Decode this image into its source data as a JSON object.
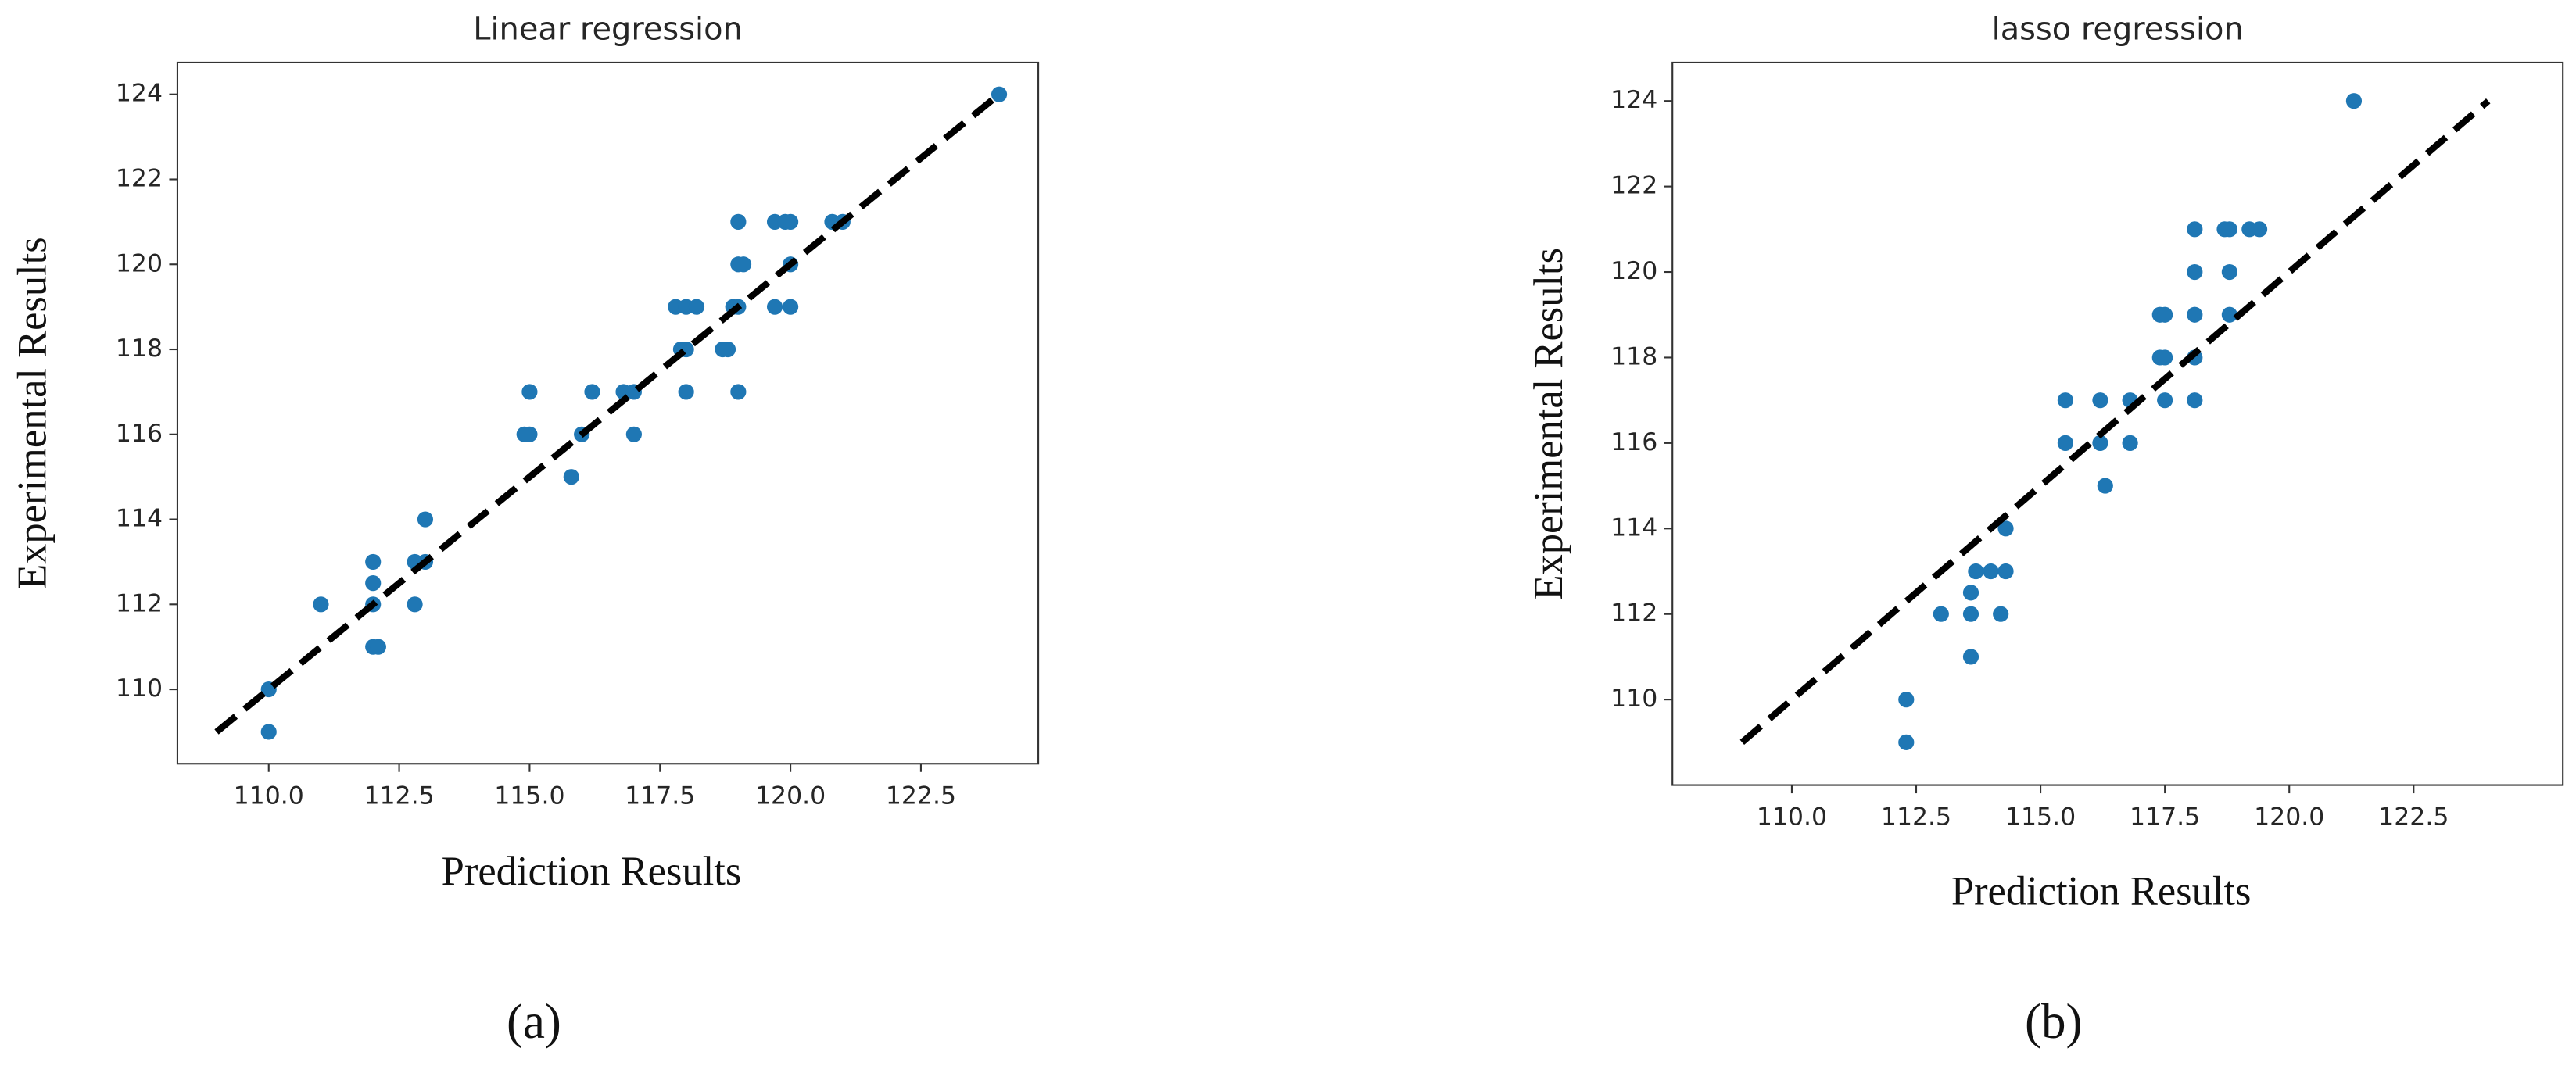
{
  "chart_data": [
    {
      "type": "scatter",
      "title": "Linear regression",
      "xlabel": "Prediction Results",
      "ylabel": "Experimental Results",
      "caption": "(a)",
      "color": "#1f77b4",
      "x": [
        124,
        110,
        110,
        111,
        112,
        112,
        112,
        112,
        112.1,
        112.8,
        113,
        113,
        112.8,
        115,
        115,
        114.9,
        115.8,
        116,
        116.2,
        116.8,
        117,
        117,
        117.8,
        118,
        118.2,
        117.9,
        118,
        118,
        118.8,
        118.7,
        118.9,
        119,
        119,
        119,
        119.1,
        119,
        119.7,
        119.9,
        120,
        119.7,
        120,
        120,
        120.8,
        121
      ],
      "y": [
        124,
        110,
        109,
        112,
        113,
        112.5,
        112,
        111,
        111,
        113,
        113,
        114,
        112,
        117,
        116,
        116,
        115,
        116,
        117,
        117,
        117,
        116,
        119,
        119,
        119,
        118,
        118,
        117,
        118,
        118,
        119,
        119,
        120,
        121,
        120,
        117,
        121,
        121,
        121,
        119,
        119,
        120,
        121,
        121
      ],
      "diagonal": {
        "x": [
          109,
          124
        ],
        "y": [
          109,
          124
        ],
        "color": "#000000"
      },
      "xlim": [
        108.25,
        124.75
      ],
      "ylim": [
        108.25,
        124.75
      ],
      "xticks": [
        {
          "value": 110,
          "label": "110.0"
        },
        {
          "value": 112.5,
          "label": "112.5"
        },
        {
          "value": 115,
          "label": "115.0"
        },
        {
          "value": 117.5,
          "label": "117.5"
        },
        {
          "value": 120,
          "label": "120.0"
        },
        {
          "value": 122.5,
          "label": "122.5"
        }
      ],
      "yticks": [
        110,
        112,
        114,
        116,
        118,
        120,
        122,
        124
      ]
    },
    {
      "type": "scatter",
      "title": "lasso regression",
      "xlabel": "Prediction Results",
      "ylabel": "Experimental Results",
      "caption": "(b)",
      "color": "#1f77b4",
      "x": [
        121.3,
        112.3,
        112.3,
        113,
        113.6,
        113.6,
        113.7,
        113.6,
        114,
        114.2,
        114.3,
        114.3,
        115.5,
        115.5,
        116.2,
        116.2,
        116.3,
        116.8,
        116.8,
        117.4,
        117.5,
        117.4,
        117.5,
        117.5,
        118.1,
        118.1,
        118.1,
        118.1,
        118.1,
        118.7,
        118.8,
        118.8,
        118.8,
        119.2,
        119.4
      ],
      "y": [
        124,
        110,
        109,
        112,
        112,
        112.5,
        113,
        111,
        113,
        112,
        113,
        114,
        117,
        116,
        117,
        116,
        115,
        117,
        116,
        119,
        119,
        118,
        118,
        117,
        121,
        120,
        119,
        118,
        117,
        121,
        121,
        120,
        119,
        121,
        121
      ],
      "diagonal": {
        "x": [
          109,
          124
        ],
        "y": [
          109,
          124
        ],
        "color": "#000000"
      },
      "xlim": [
        107.6,
        125.5
      ],
      "ylim": [
        108.0,
        124.9
      ],
      "xticks": [
        {
          "value": 110,
          "label": "110.0"
        },
        {
          "value": 112.5,
          "label": "112.5"
        },
        {
          "value": 115,
          "label": "115.0"
        },
        {
          "value": 117.5,
          "label": "117.5"
        },
        {
          "value": 120,
          "label": "120.0"
        },
        {
          "value": 122.5,
          "label": "122.5"
        }
      ],
      "yticks": [
        110,
        112,
        114,
        116,
        118,
        120,
        122,
        124
      ]
    }
  ]
}
